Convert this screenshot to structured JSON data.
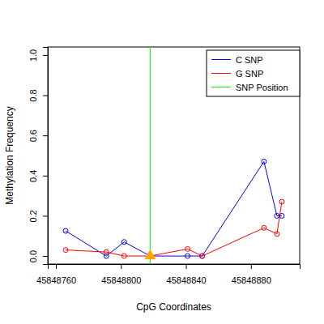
{
  "chart_data": {
    "type": "line",
    "x_label": "CpG Coordinates",
    "y_label": "Methylation Frequency",
    "x": [
      45848766,
      45848791,
      45848802,
      45848818,
      45848841,
      45848850,
      45848888,
      45848896,
      45848899
    ],
    "series": [
      {
        "name": "C SNP",
        "color": "#0000ff",
        "marker": "circle",
        "line_style": "solid",
        "values": [
          0.125,
          0.0,
          0.07,
          0.0,
          0.0,
          0.0,
          0.47,
          0.2,
          0.2
        ]
      },
      {
        "name": "G SNP",
        "color": "#ff0000",
        "marker": "circle",
        "line_style": "solid",
        "values": [
          0.03,
          0.02,
          0.0,
          0.0,
          0.035,
          0.0,
          0.14,
          0.11,
          0.27
        ]
      }
    ],
    "snp": {
      "name": "SNP Position",
      "color": "#00ff00",
      "x": 45848818,
      "y": 0,
      "marker_color": "#ffa500"
    },
    "xlim": [
      45848755,
      45848910
    ],
    "xticks": [
      45848760,
      45848800,
      45848840,
      45848880
    ],
    "ylim": [
      -0.04,
      1.04
    ],
    "yticks": [
      {
        "value": 0,
        "label": "0.0"
      },
      {
        "value": 0.2,
        "label": "0.2"
      },
      {
        "value": 0.4,
        "label": "0.4"
      },
      {
        "value": 0.6,
        "label": "0.6"
      },
      {
        "value": 0.8,
        "label": "0.8"
      },
      {
        "value": 1,
        "label": "1.0"
      }
    ],
    "legend": "top-right",
    "grid": false
  }
}
